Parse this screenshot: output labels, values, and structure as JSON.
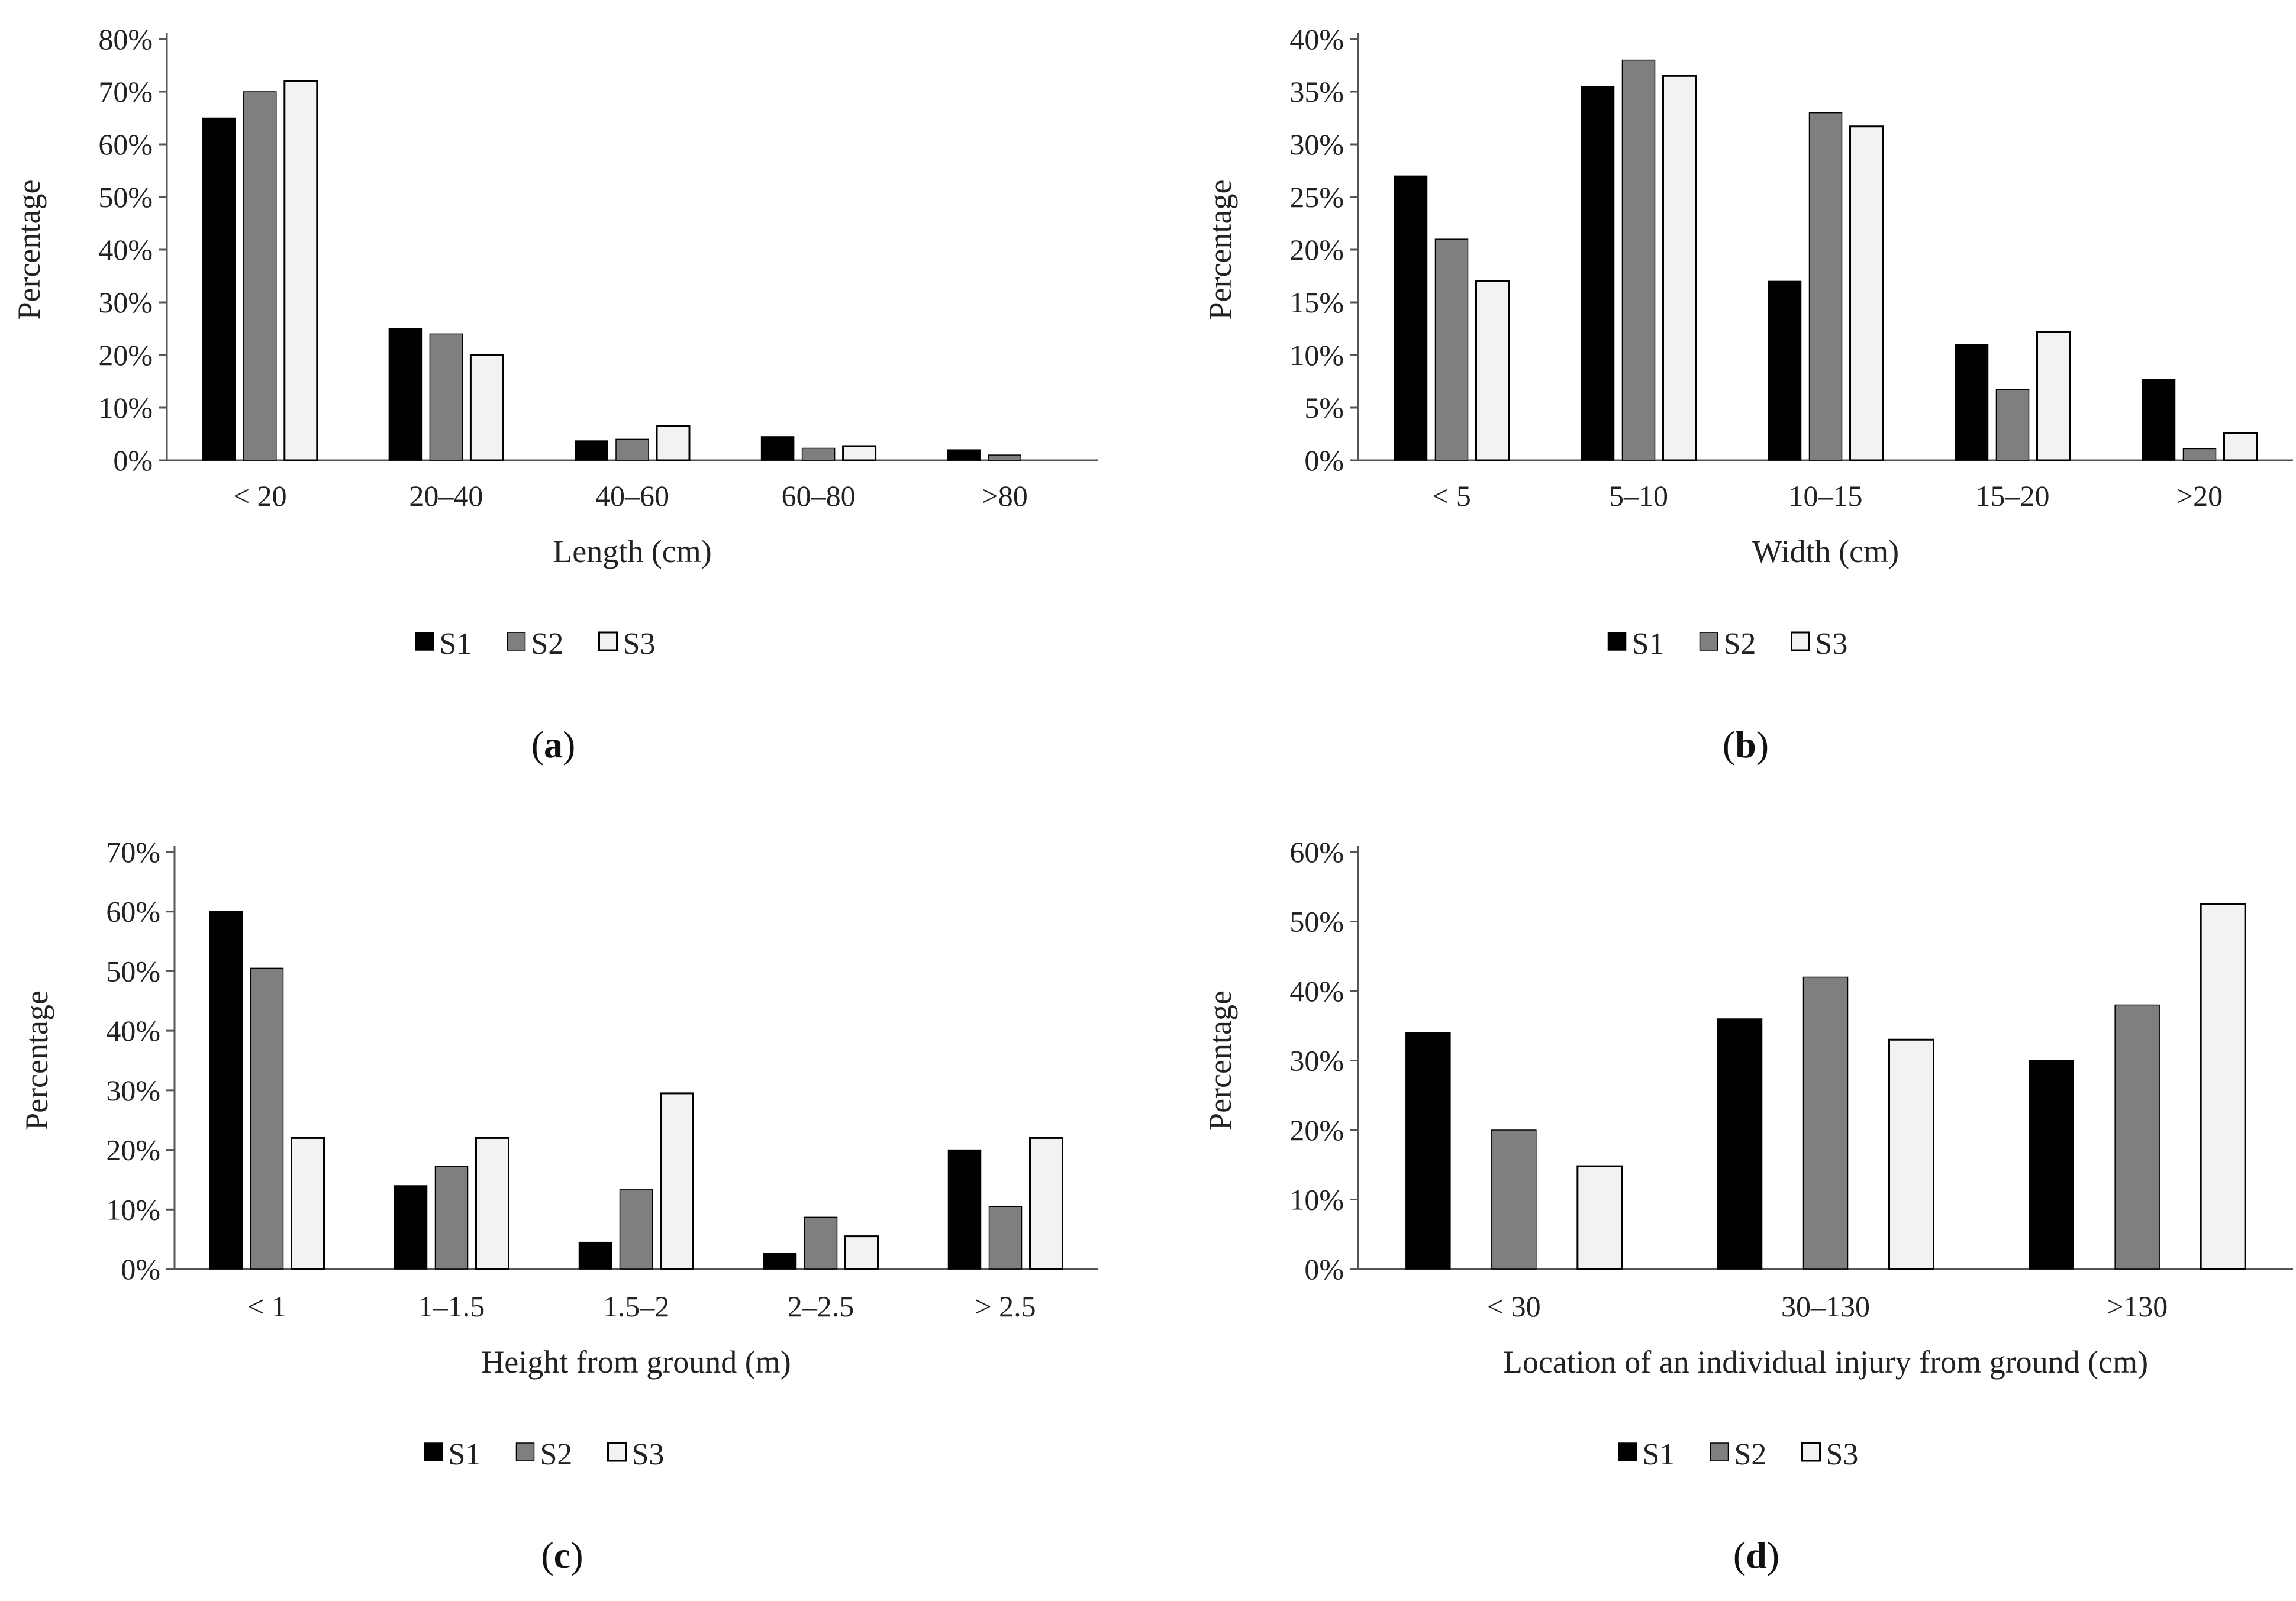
{
  "colors": {
    "S1": "#000000",
    "S2": "#7f7f7f",
    "S3": "#f2f2f2",
    "outline": "#000000",
    "axis": "#555555"
  },
  "chart_data": [
    {
      "panel": "a",
      "type": "bar",
      "xlabel": "Length (cm)",
      "ylabel": "Percentage",
      "ylim": [
        0,
        80
      ],
      "yticks": [
        "0%",
        "10%",
        "20%",
        "30%",
        "40%",
        "50%",
        "60%",
        "70%",
        "80%"
      ],
      "categories": [
        "< 20",
        "20–40",
        "40–60",
        "60–80",
        ">80"
      ],
      "series": [
        {
          "name": "S1",
          "values": [
            65,
            25,
            3.7,
            4.5,
            2
          ]
        },
        {
          "name": "S2",
          "values": [
            70,
            24,
            4,
            2.3,
            1
          ]
        },
        {
          "name": "S3",
          "values": [
            72,
            20,
            6.5,
            2.7,
            0
          ]
        }
      ],
      "legend": [
        "S1",
        "S2",
        "S3"
      ]
    },
    {
      "panel": "b",
      "type": "bar",
      "xlabel": "Width (cm)",
      "ylabel": "Percentage",
      "ylim": [
        0,
        40
      ],
      "yticks": [
        "0%",
        "5%",
        "10%",
        "15%",
        "20%",
        "25%",
        "30%",
        "35%",
        "40%"
      ],
      "categories": [
        "< 5",
        "5–10",
        "10–15",
        "15–20",
        ">20"
      ],
      "series": [
        {
          "name": "S1",
          "values": [
            27,
            35.5,
            17,
            11,
            7.7
          ]
        },
        {
          "name": "S2",
          "values": [
            21,
            38,
            33,
            6.7,
            1.1
          ]
        },
        {
          "name": "S3",
          "values": [
            17,
            36.5,
            31.7,
            12.2,
            2.6
          ]
        }
      ],
      "legend": [
        "S1",
        "S2",
        "S3"
      ]
    },
    {
      "panel": "c",
      "type": "bar",
      "xlabel": "Height from ground (m)",
      "ylabel": "Percentage",
      "ylim": [
        0,
        70
      ],
      "yticks": [
        "0%",
        "10%",
        "20%",
        "30%",
        "40%",
        "50%",
        "60%",
        "70%"
      ],
      "categories": [
        "< 1",
        "1–1.5",
        "1.5–2",
        "2–2.5",
        "> 2.5"
      ],
      "series": [
        {
          "name": "S1",
          "values": [
            60,
            14,
            4.5,
            2.7,
            20
          ]
        },
        {
          "name": "S2",
          "values": [
            50.5,
            17.2,
            13.4,
            8.7,
            10.5
          ]
        },
        {
          "name": "S3",
          "values": [
            22,
            22,
            29.5,
            5.5,
            22
          ]
        }
      ],
      "legend": [
        "S1",
        "S2",
        "S3"
      ]
    },
    {
      "panel": "d",
      "type": "bar",
      "xlabel": "Location of an individual injury from ground (cm)",
      "ylabel": "Percentage",
      "ylim": [
        0,
        60
      ],
      "yticks": [
        "0%",
        "10%",
        "20%",
        "30%",
        "40%",
        "50%",
        "60%"
      ],
      "categories": [
        "< 30",
        "30–130",
        ">130"
      ],
      "series": [
        {
          "name": "S1",
          "values": [
            34,
            36,
            30
          ]
        },
        {
          "name": "S2",
          "values": [
            20,
            42,
            38
          ]
        },
        {
          "name": "S3",
          "values": [
            14.8,
            33,
            52.5
          ]
        }
      ],
      "legend": [
        "S1",
        "S2",
        "S3"
      ]
    }
  ],
  "panel_labels": [
    {
      "open": "(",
      "letter": "a",
      "close": ")"
    },
    {
      "open": "(",
      "letter": "b",
      "close": ")"
    },
    {
      "open": "(",
      "letter": "c",
      "close": ")"
    },
    {
      "open": "(",
      "letter": "d",
      "close": ")"
    }
  ]
}
